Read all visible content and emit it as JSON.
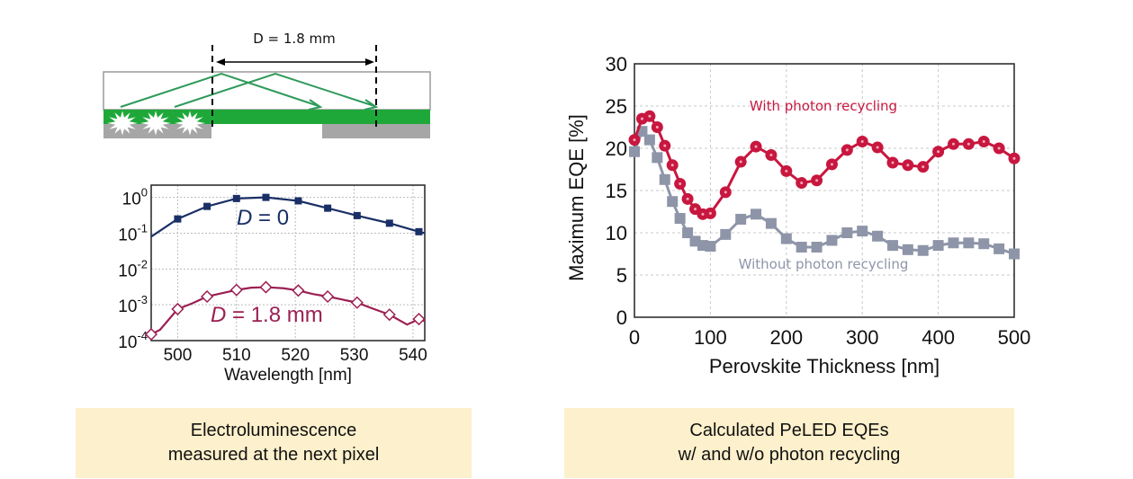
{
  "diagram": {
    "distance_label": "D = 1.8 mm",
    "colors": {
      "emitter_layer": "#1fa83a",
      "substrate": "#a6a6a6",
      "glass_outline": "#9a9a9a",
      "ray": "#2e9a5a"
    }
  },
  "captions": {
    "left": [
      "Electroluminescence",
      "measured at the next pixel"
    ],
    "right": [
      "Calculated PeLED EQEs",
      "w/ and w/o photon recycling"
    ]
  },
  "chart_data": [
    {
      "type": "line",
      "title": "",
      "xlabel": "Wavelength [nm]",
      "ylabel": "",
      "xlim": [
        495.5,
        542
      ],
      "ylim": [
        0.0001,
        2.2
      ],
      "yscale": "log",
      "grid": true,
      "x_ticks": [
        500,
        510,
        520,
        530,
        540
      ],
      "x_tick_labels": [
        "500",
        "510",
        "520",
        "530",
        "540"
      ],
      "y_ticks": [
        1,
        0.1,
        0.01,
        0.001,
        0.0001
      ],
      "y_tick_labels": [
        {
          "base": "10",
          "exp": "0"
        },
        {
          "base": "10",
          "exp": "-1"
        },
        {
          "base": "10",
          "exp": "-2"
        },
        {
          "base": "10",
          "exp": "-3"
        },
        {
          "base": "10",
          "exp": "-4"
        }
      ],
      "series": [
        {
          "name": "D = 0",
          "label_italic": "D",
          "label_rest": " = 0",
          "color": "#1a2f66",
          "marker": "filled-square",
          "x": [
            495.5,
            500,
            505,
            510,
            515,
            520.5,
            525.5,
            530.5,
            536,
            541,
            542
          ],
          "y": [
            0.08,
            0.25,
            0.56,
            0.93,
            1.0,
            0.8,
            0.5,
            0.31,
            0.19,
            0.11,
            0.1
          ],
          "markers_x": [
            500,
            505,
            510,
            515,
            520.5,
            525.5,
            530.5,
            536,
            541
          ]
        },
        {
          "name": "D = 1.8 mm",
          "label_italic": "D",
          "label_rest": " = 1.8 mm",
          "color": "#9b1f52",
          "marker": "open-diamond",
          "x": [
            495.5,
            497,
            500,
            502.5,
            505,
            507.5,
            510,
            512.5,
            515,
            518,
            520.5,
            523,
            525.5,
            528,
            530.5,
            533,
            536,
            539,
            541,
            542
          ],
          "y": [
            0.00015,
            0.0002,
            0.00076,
            0.0011,
            0.0017,
            0.0021,
            0.0026,
            0.003,
            0.0031,
            0.0029,
            0.0025,
            0.002,
            0.0017,
            0.0014,
            0.00115,
            0.0008,
            0.00053,
            0.00028,
            0.0004,
            0.00035
          ],
          "markers_x": [
            495.5,
            500,
            505,
            510,
            515,
            520.5,
            525.5,
            530.5,
            536,
            541
          ]
        }
      ]
    },
    {
      "type": "line",
      "title": "",
      "xlabel": "Perovskite Thickness [nm]",
      "ylabel": "Maximum EQE [%]",
      "xlim": [
        0,
        500
      ],
      "ylim": [
        0,
        30
      ],
      "grid": true,
      "x_ticks": [
        0,
        100,
        200,
        300,
        400,
        500
      ],
      "x_tick_labels": [
        "0",
        "100",
        "200",
        "300",
        "400",
        "500"
      ],
      "y_ticks": [
        0,
        5,
        10,
        15,
        20,
        25,
        30
      ],
      "y_tick_labels": [
        "0",
        "5",
        "10",
        "15",
        "20",
        "25",
        "30"
      ],
      "series": [
        {
          "name": "With photon recycling",
          "color": "#c8173f",
          "marker": "filled-circle",
          "x": [
            0,
            10,
            20,
            30,
            40,
            50,
            60,
            70,
            80,
            90,
            100,
            120,
            140,
            160,
            180,
            200,
            220,
            240,
            260,
            280,
            300,
            320,
            340,
            360,
            380,
            400,
            420,
            440,
            460,
            480,
            500
          ],
          "y": [
            21,
            23.5,
            23.8,
            22.5,
            20.3,
            18,
            15.8,
            14,
            12.8,
            12.2,
            12.3,
            14.8,
            18.4,
            20.2,
            19.2,
            17.3,
            15.9,
            16.2,
            18.1,
            19.8,
            20.8,
            20.1,
            18.3,
            18,
            17.8,
            19.6,
            20.5,
            20.5,
            20.8,
            20,
            18.8
          ]
        },
        {
          "name": "Without photon recycling",
          "color": "#8e95a8",
          "marker": "filled-square",
          "x": [
            0,
            10,
            20,
            30,
            40,
            50,
            60,
            70,
            80,
            90,
            100,
            120,
            140,
            160,
            180,
            200,
            220,
            240,
            260,
            280,
            300,
            320,
            340,
            360,
            380,
            400,
            420,
            440,
            460,
            480,
            500
          ],
          "y": [
            19.6,
            22,
            21,
            18.9,
            16.3,
            13.7,
            11.7,
            10,
            9,
            8.5,
            8.4,
            9.8,
            11.6,
            12.2,
            11.1,
            9.3,
            8.3,
            8.3,
            9.1,
            10,
            10.2,
            9.6,
            8.5,
            8,
            7.9,
            8.5,
            8.8,
            8.8,
            8.7,
            8.1,
            7.5
          ]
        }
      ]
    }
  ]
}
